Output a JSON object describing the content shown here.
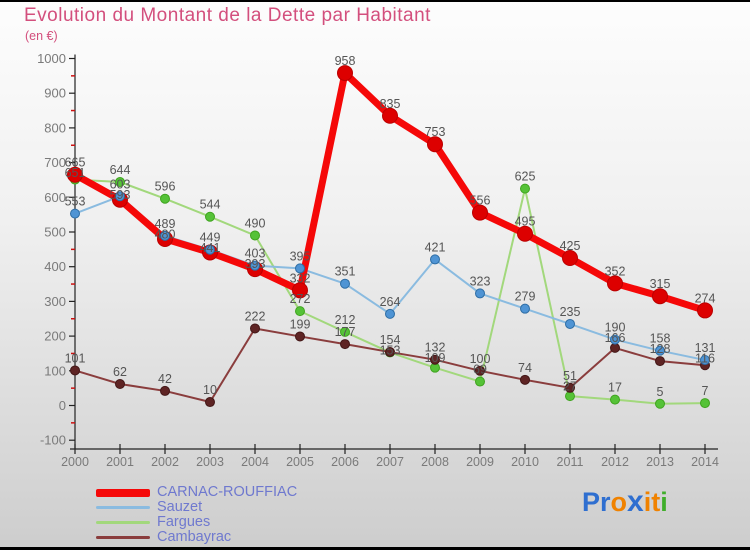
{
  "title": "Evolution du Montant de la Dette par Habitant",
  "subtitle": "(en €)",
  "colors": {
    "title": "#d34f7d",
    "axis_line": "#222222",
    "axis_text": "#7a7a7a",
    "minor_tick": "#cc1111",
    "data_label": "#555555",
    "legend_text": "#6f79cf"
  },
  "chart_data": {
    "type": "line",
    "title": "Evolution du Montant de la Dette par Habitant",
    "unit": "€",
    "xlabel": "",
    "ylabel": "",
    "grid": false,
    "legend_position": "bottom-left",
    "ylim": [
      -100,
      1000
    ],
    "y_ticks": [
      -100,
      0,
      100,
      200,
      300,
      400,
      500,
      600,
      700,
      800,
      900,
      1000
    ],
    "y_minor_tick_step": 50,
    "x": [
      2000,
      2001,
      2002,
      2003,
      2004,
      2005,
      2006,
      2007,
      2008,
      2009,
      2010,
      2011,
      2012,
      2013,
      2014
    ],
    "series": [
      {
        "name": "CARNAC-ROUFFIAC",
        "line_color": "#f50808",
        "marker_color": "#dd0000",
        "marker_edge": "#bb0000",
        "line_width": 7,
        "marker_radius": 7.5,
        "values": [
          665,
          593,
          480,
          441,
          393,
          332,
          958,
          835,
          753,
          556,
          495,
          425,
          352,
          315,
          274
        ]
      },
      {
        "name": "Sauzet",
        "line_color": "#8abbe0",
        "marker_color": "#4f94d4",
        "marker_edge": "#2e6da4",
        "line_width": 2,
        "marker_radius": 4.5,
        "values": [
          553,
          603,
          489,
          449,
          403,
          395,
          351,
          264,
          421,
          323,
          279,
          235,
          190,
          158,
          131
        ]
      },
      {
        "name": "Fargues",
        "line_color": "#a2d87c",
        "marker_color": "#55c237",
        "marker_edge": "#3fa31f",
        "line_width": 2,
        "marker_radius": 4.5,
        "values": [
          651,
          644,
          596,
          544,
          490,
          272,
          212,
          153,
          109,
          69,
          625,
          27,
          17,
          5,
          7
        ]
      },
      {
        "name": "Cambayrac",
        "line_color": "#8a3d3d",
        "marker_color": "#5e2424",
        "marker_edge": "#431717",
        "line_width": 2,
        "marker_radius": 4.5,
        "values": [
          101,
          62,
          42,
          10,
          222,
          199,
          177,
          154,
          132,
          100,
          74,
          51,
          166,
          128,
          116
        ]
      }
    ]
  },
  "logo": {
    "text": "Proxiti",
    "letters": [
      {
        "ch": "P",
        "color": "#2f6fd0",
        "emphasis": false
      },
      {
        "ch": "r",
        "color": "#2f6fd0",
        "emphasis": false
      },
      {
        "ch": "o",
        "color": "#f08200",
        "emphasis": false
      },
      {
        "ch": "x",
        "color": "#2f6fd0",
        "emphasis": true
      },
      {
        "ch": "i",
        "color": "#f08200",
        "emphasis": false
      },
      {
        "ch": "t",
        "color": "#f08200",
        "emphasis": false
      },
      {
        "ch": "i",
        "color": "#3fae2a",
        "emphasis": false
      }
    ]
  }
}
